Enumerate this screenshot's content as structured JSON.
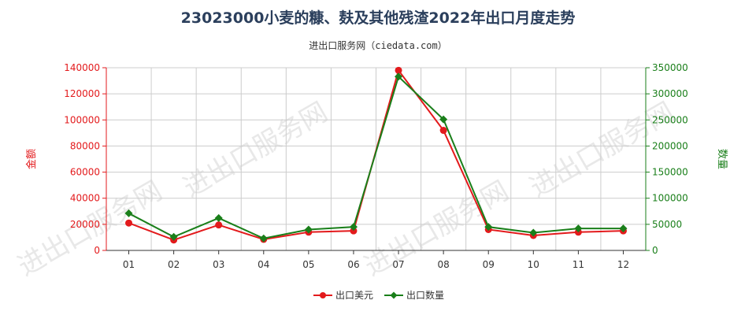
{
  "title": "23023000小麦的糠、麸及其他残渣2022年出口月度走势",
  "subtitle": "进出口服务网（ciedata.com）",
  "watermark": "进出口服务网",
  "colors": {
    "amount": "#e31a1c",
    "quantity": "#1a7f1a",
    "grid": "#cccccc",
    "axis": "#333333"
  },
  "chart_data": {
    "type": "line",
    "categories": [
      "01",
      "02",
      "03",
      "04",
      "05",
      "06",
      "07",
      "08",
      "09",
      "10",
      "11",
      "12"
    ],
    "y_left": {
      "label": "金额",
      "ylim": [
        0,
        140000
      ],
      "ticks": [
        0,
        20000,
        40000,
        60000,
        80000,
        100000,
        120000,
        140000
      ]
    },
    "y_right": {
      "label": "数量",
      "ylim": [
        0,
        350000
      ],
      "ticks": [
        0,
        50000,
        100000,
        150000,
        200000,
        250000,
        300000,
        350000
      ]
    },
    "grid": true,
    "legend_position": "bottom",
    "series": [
      {
        "name": "出口美元",
        "axis": "left",
        "values": [
          21000,
          8000,
          19500,
          8500,
          14000,
          15000,
          138000,
          92000,
          16000,
          11500,
          14000,
          15000
        ]
      },
      {
        "name": "出口数量",
        "axis": "right",
        "values": [
          71000,
          26000,
          62000,
          23000,
          40000,
          45000,
          333000,
          251000,
          45000,
          34000,
          42000,
          42000
        ]
      }
    ]
  }
}
